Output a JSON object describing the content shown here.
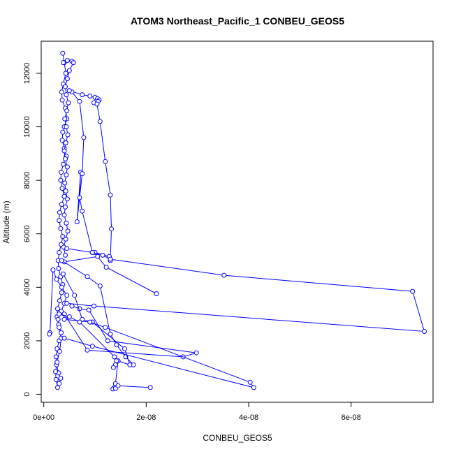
{
  "chart_data": {
    "type": "line",
    "title": "ATOM3 Northeast_Pacific_1 CONBEU_GEOS5",
    "xlabel": "CONBEU_GEOS5",
    "ylabel": "Altitude (m)",
    "xlim": [
      -5e-10,
      7.6e-08
    ],
    "ylim": [
      -300,
      13200
    ],
    "x_ticks": [
      0,
      2e-08,
      4e-08,
      6e-08
    ],
    "x_tick_labels": [
      "0e+00",
      "2e-08",
      "4e-08",
      "6e-08"
    ],
    "y_ticks": [
      0,
      2000,
      4000,
      6000,
      8000,
      10000,
      12000
    ],
    "y_tick_labels": [
      "0",
      "2000",
      "4000",
      "6000",
      "8000",
      "10000",
      "12000"
    ],
    "line_color": "#0000ff",
    "marker": "open-circle",
    "grid": false,
    "series": [
      {
        "x": [
          3.7e-09,
          4e-09,
          4.3e-09,
          3.8e-09,
          3.5e-09,
          3.6e-09,
          4.2e-09,
          4.5e-09,
          4e-09,
          3.7e-09,
          3.6e-09,
          4e-09,
          4.4e-09,
          3.8e-09,
          3.4e-09,
          3.3e-09,
          3.6e-09,
          4e-09,
          3.5e-09,
          3.1e-09,
          3e-09,
          3.3e-09,
          3.7e-09,
          3.4e-09,
          3e-09,
          2.8e-09,
          2.9e-09,
          3.3e-09,
          3.7e-09,
          3.5e-09,
          3.1e-09,
          2.7e-09,
          2.6e-09,
          2.9e-09,
          3.4e-09,
          3e-09,
          2.6e-09,
          2.4e-09,
          2.5e-09,
          2.9e-09,
          3.3e-09,
          3e-09,
          2.7e-09,
          2.4e-09,
          2.3e-09,
          2.6e-09,
          3.1e-09,
          3.4e-09,
          3e-09,
          2.8e-09,
          3.4e-09,
          4e-09,
          4.5e-09,
          3.5e-09,
          2.5e-09,
          1.8e-09,
          1.2e-09,
          1.1e-09
        ],
        "y": [
          12750,
          12400,
          12000,
          11600,
          11300,
          11000,
          10700,
          10300,
          10000,
          9800,
          9500,
          9200,
          8900,
          8600,
          8300,
          8000,
          7700,
          7400,
          7100,
          6800,
          6500,
          6200,
          5900,
          5600,
          5300,
          5000,
          4700,
          4400,
          4100,
          3800,
          3500,
          3200,
          2900,
          2600,
          2300,
          2000,
          1700,
          1400,
          1100,
          800,
          600,
          400,
          250,
          550,
          850,
          1200,
          1600,
          2100,
          2500,
          2800,
          3100,
          3400,
          3700,
          4000,
          4300,
          4650,
          2300,
          2250
        ]
      },
      {
        "x": [
          3.8e-09,
          4.6e-09,
          5.5e-09,
          5.8e-09,
          5e-09,
          4.6e-09,
          4.2e-09,
          4.4e-09,
          4.8e-09,
          4.5e-09,
          4.1e-09,
          4.4e-09,
          4.7e-09,
          4.3e-09,
          4e-09,
          4.2e-09,
          4.6e-09,
          4.4e-09,
          4.1e-09,
          4.3e-09,
          4.6e-09,
          4.2e-09,
          4e-09,
          4.4e-09,
          4.7e-09,
          4.3e-09,
          3.9e-09,
          4.2e-09
        ],
        "y": [
          12400,
          12480,
          12450,
          12400,
          12100,
          11800,
          11500,
          11200,
          10900,
          10600,
          10300,
          10000,
          9700,
          9400,
          9100,
          8800,
          8500,
          8200,
          7900,
          7600,
          7300,
          7000,
          6700,
          6400,
          6100,
          5800,
          5500,
          5200
        ]
      },
      {
        "x": [
          5e-09,
          7.5e-09,
          9e-09,
          1e-08,
          1.05e-08,
          1.08e-08,
          1.06e-08,
          9.8e-09,
          1.04e-08,
          1.1e-08,
          1.2e-08,
          1.3e-08,
          1.32e-08,
          1.3e-08,
          1.28e-08,
          1e-08,
          9.5e-09,
          7.5e-09,
          7e-09,
          7.2e-09,
          6.5e-09,
          7.5e-09,
          7.8e-09,
          7e-09,
          5.5e-09,
          5e-09
        ],
        "y": [
          11350,
          11200,
          11150,
          11100,
          11050,
          11000,
          10950,
          10900,
          10850,
          10200,
          8700,
          7450,
          6180,
          5000,
          5150,
          5300,
          5300,
          6850,
          7350,
          8300,
          6450,
          8250,
          9600,
          10950,
          11300,
          11350
        ]
      },
      {
        "x": [
          4.5e-09,
          9.5e-09,
          1.15e-08,
          1.3e-08,
          3.52e-08,
          7.2e-08,
          7.43e-08,
          9.8e-09,
          4.5e-09
        ],
        "y": [
          5450,
          5300,
          5200,
          5050,
          4450,
          3850,
          2350,
          3300,
          3400
        ]
      },
      {
        "x": [
          4e-09,
          1.05e-08,
          1.22e-08,
          2.2e-08
        ],
        "y": [
          4950,
          5150,
          4750,
          3760
        ]
      },
      {
        "x": [
          3.5e-09,
          8.5e-09,
          1.1e-08,
          1.3e-08,
          1.42e-08,
          1.6e-08,
          1.75e-08
        ],
        "y": [
          5000,
          4400,
          4050,
          2250,
          1850,
          1400,
          1100
        ]
      },
      {
        "x": [
          5.5e-09,
          7e-09,
          8.8e-09,
          1.25e-08,
          2.98e-08,
          2.72e-08,
          8.5e-09,
          4e-09
        ],
        "y": [
          3300,
          3200,
          3150,
          2000,
          1550,
          1400,
          1650,
          3000
        ]
      },
      {
        "x": [
          3.8e-09,
          6e-09,
          7.5e-09,
          9.5e-09,
          1.58e-08,
          1.68e-08,
          1.45e-08,
          1.4e-08,
          1.38e-08,
          1.35e-08,
          1.4e-08,
          1.45e-08,
          2.08e-08
        ],
        "y": [
          4500,
          3700,
          2800,
          2700,
          1700,
          1100,
          1250,
          400,
          250,
          200,
          220,
          320,
          250
        ]
      },
      {
        "x": [
          4e-09,
          9e-09,
          1.2e-08,
          4.03e-08,
          4.1e-08,
          9.5e-09,
          4e-09
        ],
        "y": [
          2800,
          2700,
          2500,
          450,
          250,
          1800,
          2100
        ]
      },
      {
        "x": [
          3e-09,
          5e-09,
          7e-09,
          1.38e-08,
          1.42e-08,
          1.4e-08,
          1.36e-08
        ],
        "y": [
          3000,
          2900,
          2700,
          1400,
          1250,
          1100,
          1000
        ]
      }
    ]
  }
}
